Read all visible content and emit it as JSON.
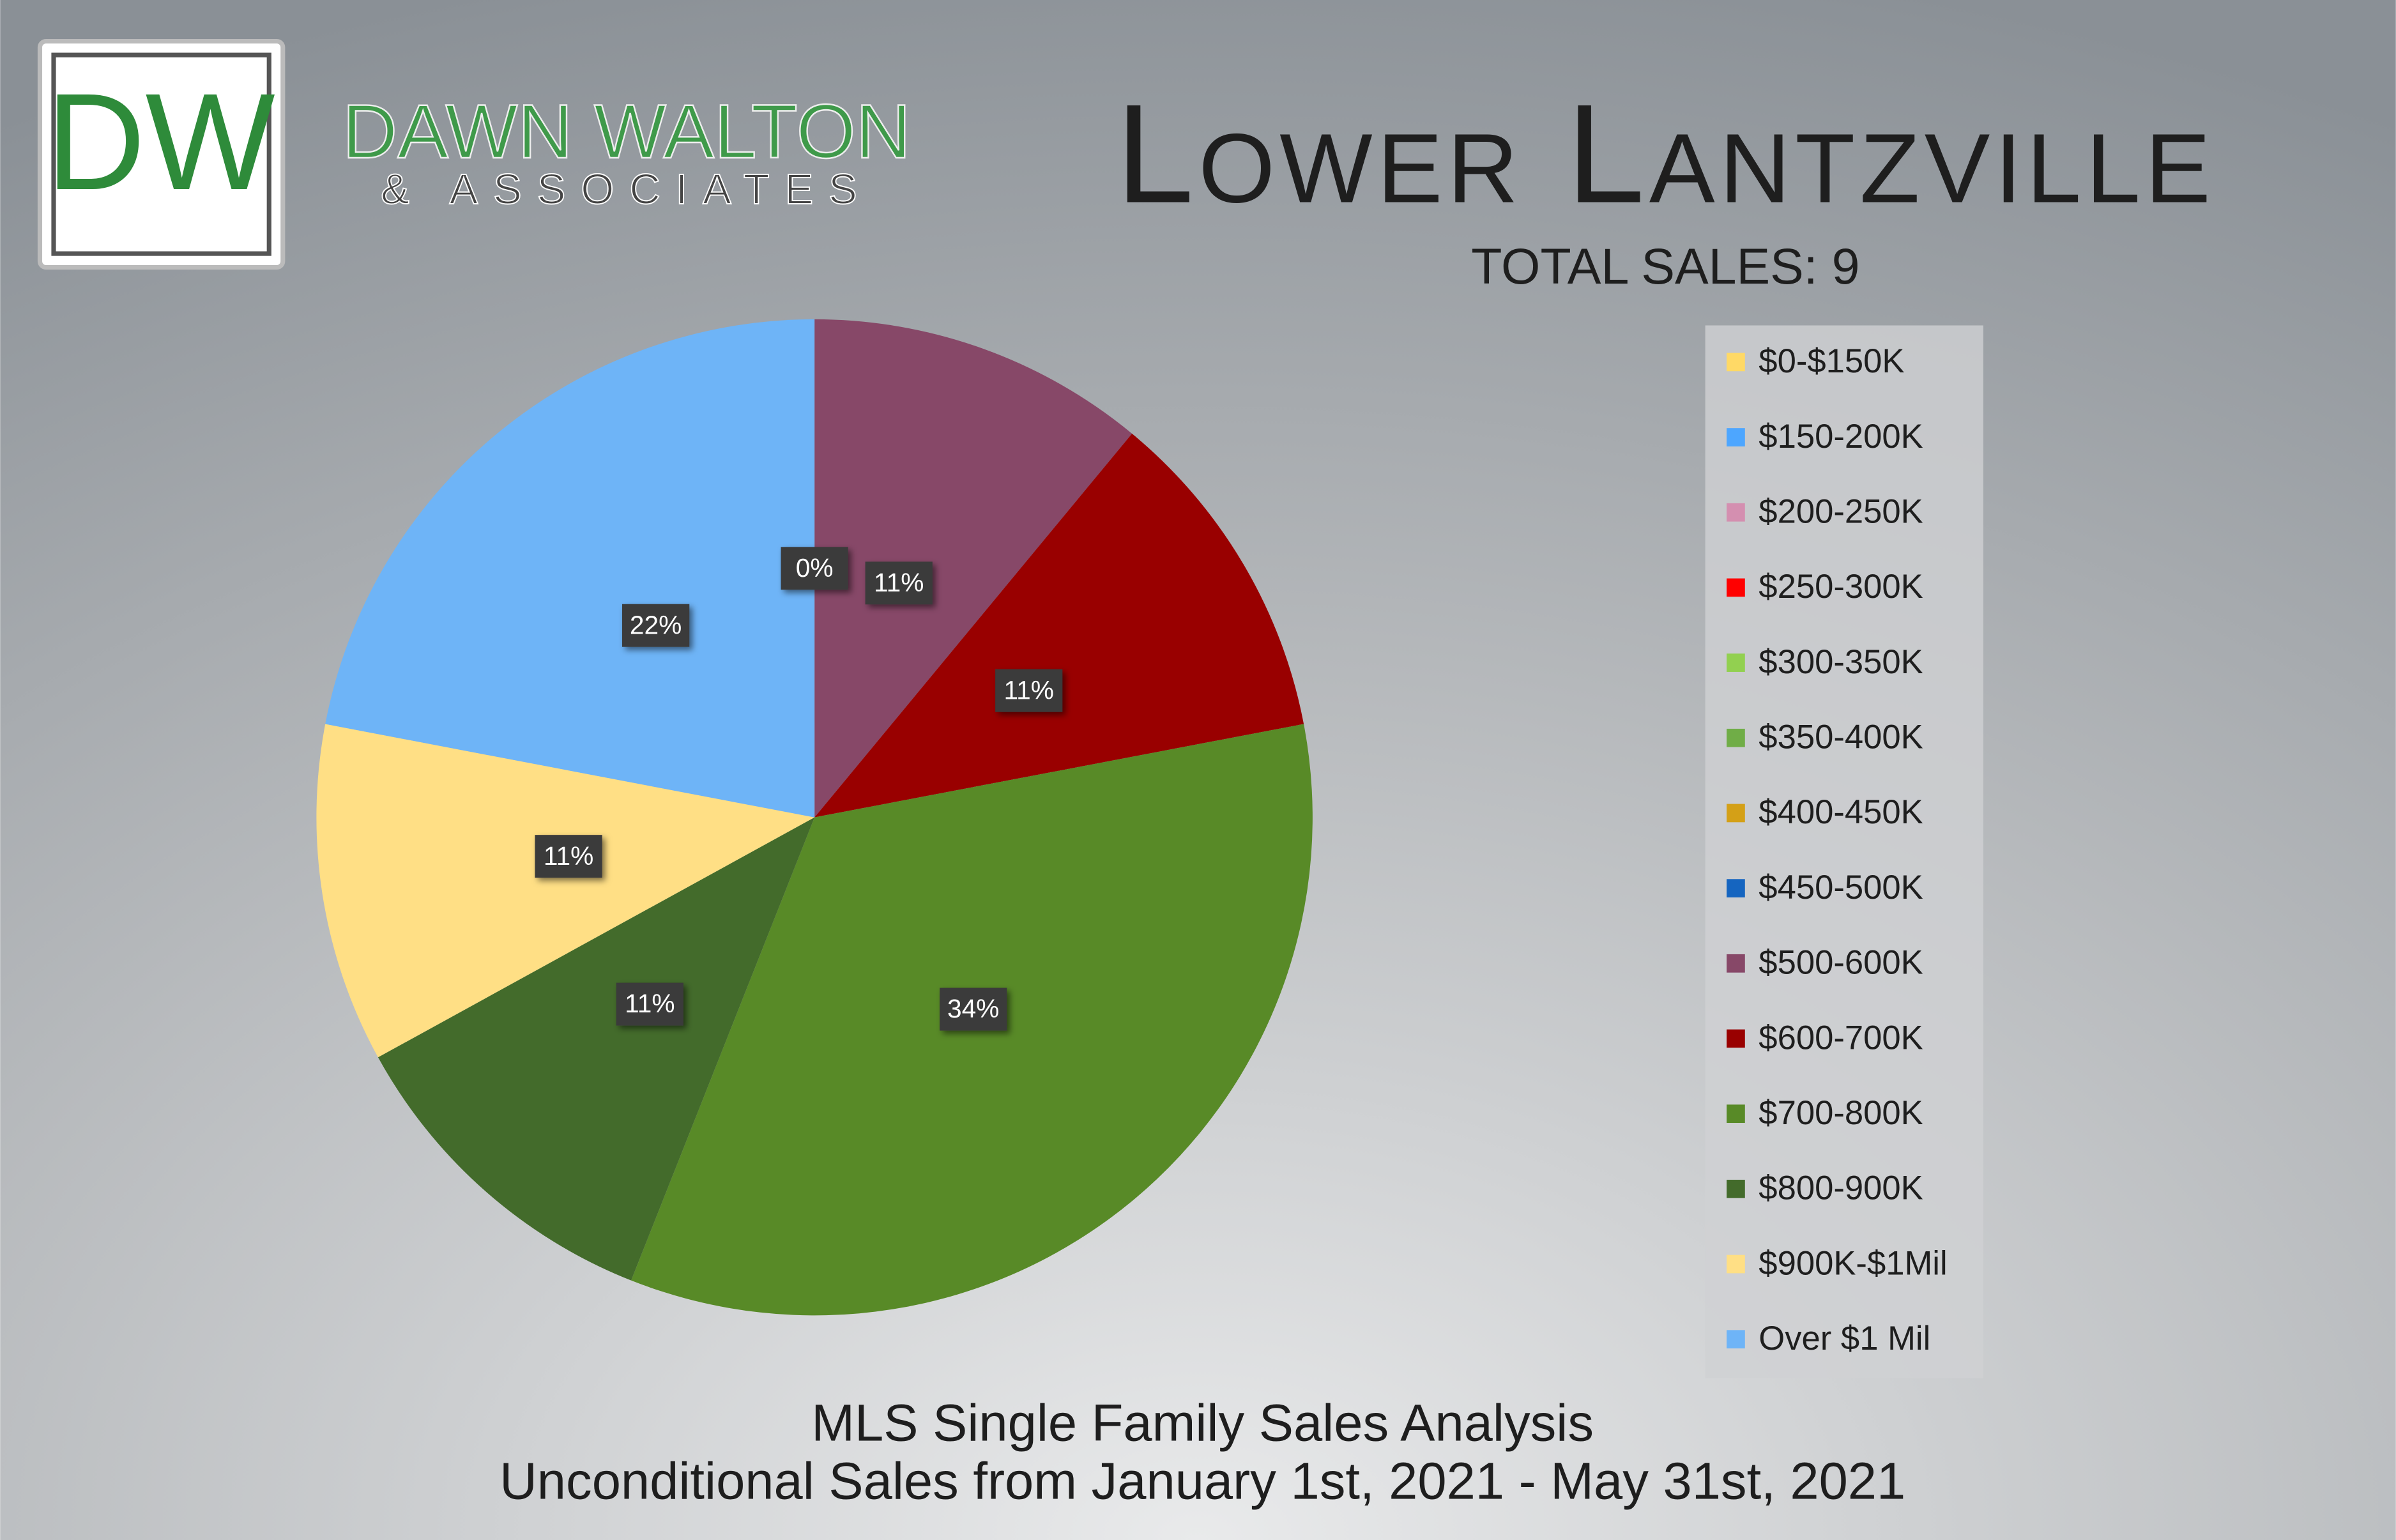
{
  "logo": {
    "initials": "DW",
    "name": "DAWN WALTON",
    "tagline": "& ASSOCIATES"
  },
  "chart_data": {
    "type": "pie",
    "title": "Lower Lantzville",
    "subtitle": "TOTAL SALES: 9",
    "footer": [
      "MLS Single Family Sales Analysis",
      "Unconditional Sales from January 1st, 2021 - May 31st, 2021"
    ],
    "categories": [
      "$0-$150K",
      "$150-200K",
      "$200-250K",
      "$250-300K",
      "$300-350K",
      "$350-400K",
      "$400-450K",
      "$450-500K",
      "$500-600K",
      "$600-700K",
      "$700-800K",
      "$800-900K",
      "$900K-$1Mil",
      "Over $1 Mil"
    ],
    "values": [
      0,
      0,
      0,
      0,
      0,
      0,
      0,
      0,
      11,
      11,
      34,
      11,
      11,
      22
    ],
    "value_labels": [
      null,
      null,
      null,
      null,
      null,
      null,
      null,
      "0%",
      "11%",
      "11%",
      "34%",
      "11%",
      "11%",
      "22%"
    ],
    "colors": [
      "#ffd966",
      "#4da6ff",
      "#d48fb0",
      "#ff0000",
      "#92d050",
      "#70ad47",
      "#d4a017",
      "#1565c0",
      "#874868",
      "#990000",
      "#588a27",
      "#436b2b",
      "#ffdf85",
      "#6eb4f7"
    ],
    "legend": "right"
  }
}
